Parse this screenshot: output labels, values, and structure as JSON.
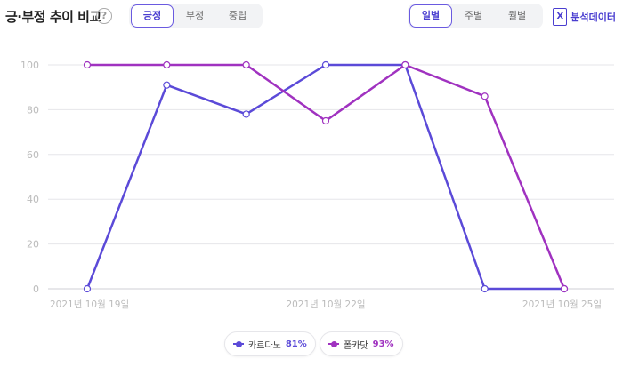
{
  "header": {
    "title": "긍·부정 추이 비교",
    "help_glyph": "?",
    "sentiment_tabs": [
      "긍정",
      "부정",
      "중립"
    ],
    "sentiment_active": 0,
    "period_tabs": [
      "일별",
      "주별",
      "월별"
    ],
    "period_active": 0,
    "export_label": "분석데이터",
    "export_icon": "excel-icon"
  },
  "colors": {
    "series1": "#5b4ad8",
    "series2": "#a032c0",
    "grid": "#e6e6ea",
    "axis_text": "#bbbbbb"
  },
  "legend": [
    {
      "name": "카르다노",
      "pct": "81%"
    },
    {
      "name": "폴카닷",
      "pct": "93%"
    }
  ],
  "chart_data": {
    "type": "line",
    "x": [
      "2021-10-19",
      "2021-10-20",
      "2021-10-21",
      "2021-10-22",
      "2021-10-23",
      "2021-10-24",
      "2021-10-25"
    ],
    "x_tick_labels": [
      "2021년 10월 19일",
      "2021년 10월 22일",
      "2021년 10월 25일"
    ],
    "x_tick_index": [
      0,
      3,
      6
    ],
    "y_ticks": [
      0,
      20,
      40,
      60,
      80,
      100
    ],
    "ylim": [
      0,
      100
    ],
    "grid": true,
    "series": [
      {
        "name": "카르다노",
        "values": [
          0,
          91,
          78,
          100,
          100,
          0,
          0
        ]
      },
      {
        "name": "폴카닷",
        "values": [
          100,
          100,
          100,
          75,
          100,
          86,
          0
        ]
      }
    ]
  }
}
